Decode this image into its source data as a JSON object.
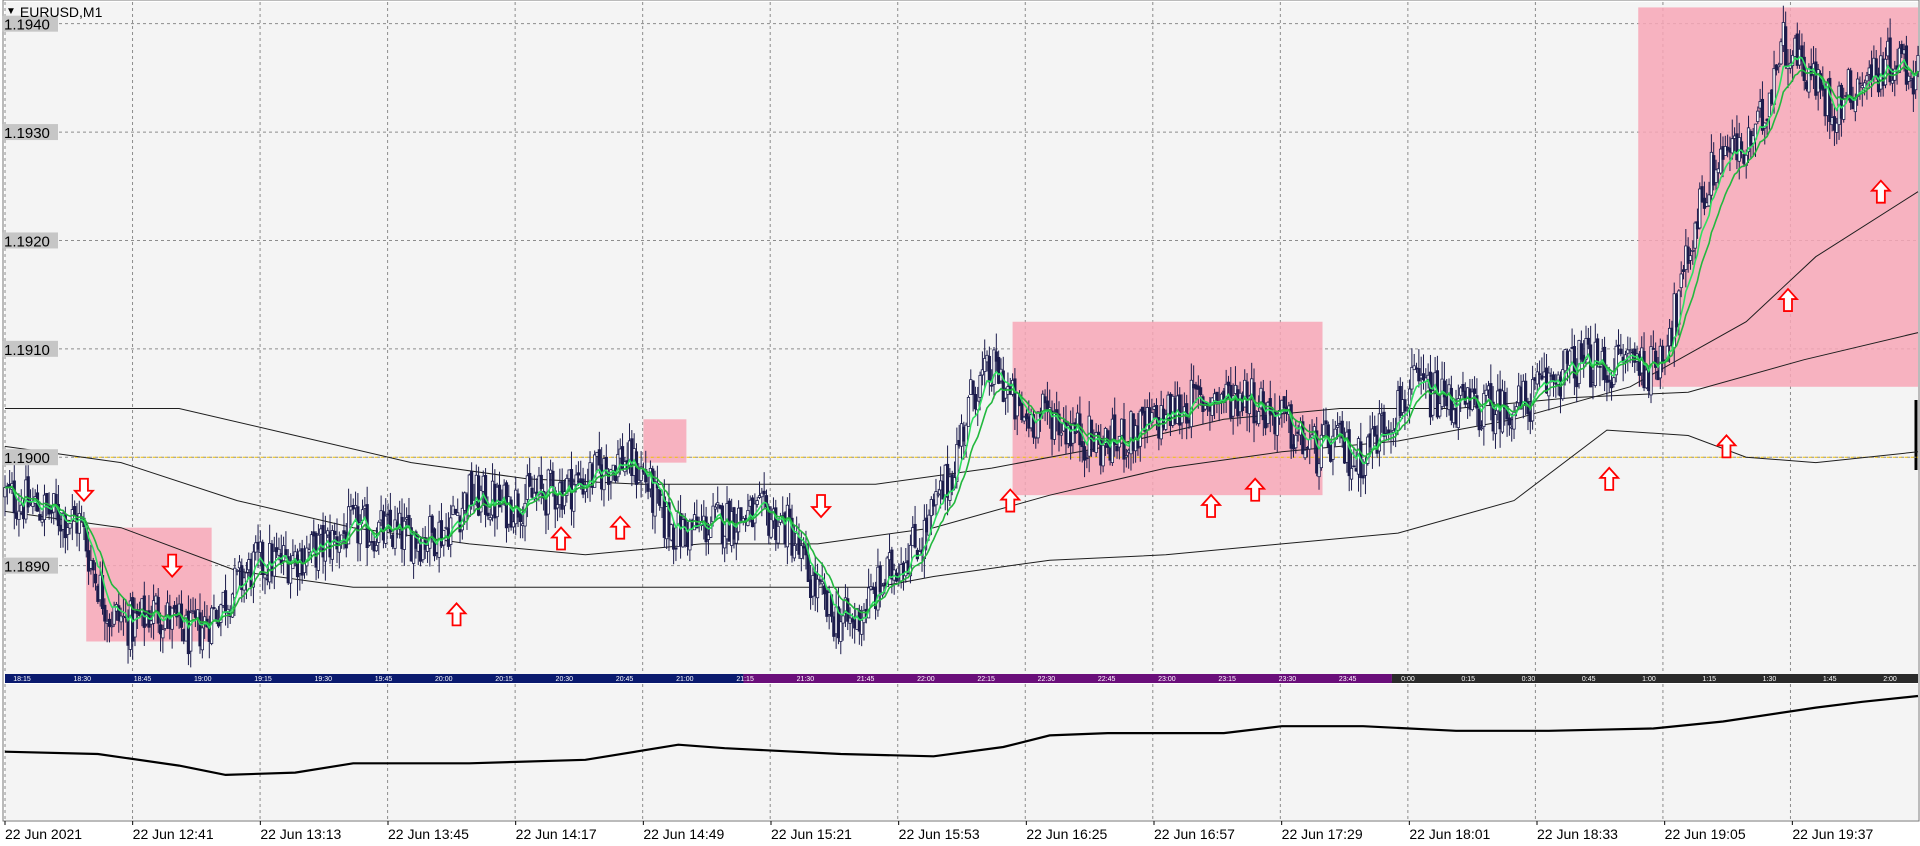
{
  "window": {
    "title": "EURUSD,M1",
    "dropdown_icon": "triangle-down-icon"
  },
  "colors": {
    "background": "#f4f4f4",
    "grid": "#8c8c8c",
    "candle": "#1c1c4c",
    "ma_fast": "#2fe060",
    "ma_slow": "#22b83e",
    "envelope": "#1e1e1e",
    "zone": "#f7a6b6",
    "arrow": "#ff0000",
    "bid_line": "#f0c000",
    "price_label_bg": "#c6c6c6"
  },
  "price_axis": {
    "labels": [
      "1.1940",
      "1.1930",
      "1.1920",
      "1.1910",
      "1.1900",
      "1.1890"
    ]
  },
  "session_bar": {
    "ticks": [
      "18:15",
      "18:30",
      "18:45",
      "19:00",
      "19:15",
      "19:30",
      "19:45",
      "20:00",
      "20:15",
      "20:30",
      "20:45",
      "21:00",
      "21:15",
      "21:30",
      "21:45",
      "22:00",
      "22:15",
      "22:30",
      "22:45",
      "23:00",
      "23:15",
      "23:30",
      "23:45",
      "0:00",
      "0:15",
      "0:30",
      "0:45",
      "1:00",
      "1:15",
      "1:30",
      "1:45",
      "2:00"
    ]
  },
  "time_axis": {
    "labels": [
      "22 Jun 2021",
      "22 Jun 12:41",
      "22 Jun 13:13",
      "22 Jun 13:45",
      "22 Jun 14:17",
      "22 Jun 14:49",
      "22 Jun 15:21",
      "22 Jun 15:53",
      "22 Jun 16:25",
      "22 Jun 16:57",
      "22 Jun 17:29",
      "22 Jun 18:01",
      "22 Jun 18:33",
      "22 Jun 19:05",
      "22 Jun 19:37"
    ]
  },
  "chart_data": {
    "type": "candlestick",
    "symbol": "EURUSD",
    "timeframe": "M1",
    "ylim": [
      1.188,
      1.1942
    ],
    "bid_level": 1.19,
    "time_range": [
      "22 Jun 2021 12:09",
      "22 Jun 2021 20:10"
    ],
    "price_path": [
      [
        0,
        1.18965
      ],
      [
        25,
        1.18955
      ],
      [
        50,
        1.18945
      ],
      [
        65,
        1.1894
      ],
      [
        75,
        1.189
      ],
      [
        90,
        1.18855
      ],
      [
        110,
        1.18845
      ],
      [
        130,
        1.1886
      ],
      [
        160,
        1.18835
      ],
      [
        175,
        1.1885
      ],
      [
        190,
        1.1887
      ],
      [
        215,
        1.189
      ],
      [
        240,
        1.18905
      ],
      [
        270,
        1.18915
      ],
      [
        300,
        1.18935
      ],
      [
        330,
        1.1893
      ],
      [
        360,
        1.18925
      ],
      [
        380,
        1.18935
      ],
      [
        400,
        1.18965
      ],
      [
        430,
        1.18955
      ],
      [
        460,
        1.18965
      ],
      [
        490,
        1.18975
      ],
      [
        510,
        1.18985
      ],
      [
        530,
        1.19
      ],
      [
        550,
        1.18985
      ],
      [
        565,
        1.18945
      ],
      [
        580,
        1.1893
      ],
      [
        600,
        1.18935
      ],
      [
        630,
        1.18945
      ],
      [
        660,
        1.18945
      ],
      [
        675,
        1.18935
      ],
      [
        690,
        1.18895
      ],
      [
        710,
        1.18855
      ],
      [
        730,
        1.18845
      ],
      [
        750,
        1.18875
      ],
      [
        770,
        1.18905
      ],
      [
        790,
        1.18925
      ],
      [
        815,
        1.18985
      ],
      [
        835,
        1.19065
      ],
      [
        855,
        1.1908
      ],
      [
        875,
        1.19035
      ],
      [
        900,
        1.1904
      ],
      [
        920,
        1.19025
      ],
      [
        945,
        1.1901
      ],
      [
        970,
        1.1902
      ],
      [
        995,
        1.19035
      ],
      [
        1020,
        1.1905
      ],
      [
        1050,
        1.19055
      ],
      [
        1070,
        1.1906
      ],
      [
        1085,
        1.19045
      ],
      [
        1100,
        1.19035
      ],
      [
        1115,
        1.19015
      ],
      [
        1130,
        1.19005
      ],
      [
        1145,
        1.19015
      ],
      [
        1165,
        1.18995
      ],
      [
        1190,
        1.19035
      ],
      [
        1215,
        1.19065
      ],
      [
        1235,
        1.19055
      ],
      [
        1260,
        1.19045
      ],
      [
        1290,
        1.19045
      ],
      [
        1310,
        1.1905
      ],
      [
        1335,
        1.19075
      ],
      [
        1360,
        1.1909
      ],
      [
        1380,
        1.1908
      ],
      [
        1400,
        1.19095
      ],
      [
        1420,
        1.1908
      ],
      [
        1440,
        1.19135
      ],
      [
        1460,
        1.19235
      ],
      [
        1480,
        1.19285
      ],
      [
        1500,
        1.1928
      ],
      [
        1515,
        1.19315
      ],
      [
        1530,
        1.19385
      ],
      [
        1545,
        1.1937
      ],
      [
        1560,
        1.19345
      ],
      [
        1575,
        1.1932
      ],
      [
        1590,
        1.1934
      ],
      [
        1610,
        1.19355
      ],
      [
        1630,
        1.1937
      ],
      [
        1648,
        1.1935
      ]
    ],
    "envelope_lines": [
      {
        "name": "",
        "points": [
          [
            0,
            1.19045
          ],
          [
            150,
            1.19045
          ],
          [
            250,
            1.1902
          ],
          [
            350,
            1.18995
          ],
          [
            450,
            1.1898
          ],
          [
            550,
            1.18975
          ],
          [
            650,
            1.18975
          ],
          [
            750,
            1.18975
          ],
          [
            850,
            1.1899
          ],
          [
            950,
            1.1901
          ],
          [
            1050,
            1.19035
          ],
          [
            1150,
            1.19045
          ],
          [
            1250,
            1.19045
          ],
          [
            1350,
            1.19055
          ],
          [
            1450,
            1.1906
          ],
          [
            1550,
            1.1909
          ],
          [
            1648,
            1.19115
          ]
        ]
      },
      {
        "name": "",
        "points": [
          [
            0,
            1.1895
          ],
          [
            100,
            1.18935
          ],
          [
            200,
            1.18895
          ],
          [
            300,
            1.1888
          ],
          [
            450,
            1.1888
          ],
          [
            600,
            1.1888
          ],
          [
            750,
            1.1888
          ],
          [
            800,
            1.1889
          ],
          [
            900,
            1.18905
          ],
          [
            1000,
            1.1891
          ],
          [
            1100,
            1.1892
          ],
          [
            1200,
            1.1893
          ],
          [
            1300,
            1.1896
          ],
          [
            1380,
            1.19025
          ],
          [
            1450,
            1.1902
          ],
          [
            1500,
            1.19
          ],
          [
            1560,
            1.18995
          ],
          [
            1648,
            1.19005
          ]
        ]
      },
      {
        "name": "",
        "points": [
          [
            0,
            1.1901
          ],
          [
            100,
            1.18995
          ],
          [
            200,
            1.1896
          ],
          [
            300,
            1.18935
          ],
          [
            400,
            1.1892
          ],
          [
            500,
            1.1891
          ],
          [
            600,
            1.1892
          ],
          [
            700,
            1.1892
          ],
          [
            800,
            1.18935
          ],
          [
            900,
            1.18965
          ],
          [
            1000,
            1.1899
          ],
          [
            1100,
            1.19005
          ],
          [
            1200,
            1.19015
          ],
          [
            1300,
            1.19035
          ],
          [
            1400,
            1.19065
          ],
          [
            1500,
            1.19125
          ],
          [
            1560,
            1.19185
          ],
          [
            1648,
            1.19245
          ]
        ]
      }
    ],
    "zones": [
      {
        "x": [
          70,
          178
        ],
        "y": [
          1.1883,
          1.18935
        ]
      },
      {
        "x": [
          550,
          587
        ],
        "y": [
          1.18995,
          1.19035
        ]
      },
      {
        "x": [
          868,
          1135
        ],
        "y": [
          1.18965,
          1.19125
        ]
      },
      {
        "x": [
          1407,
          1648
        ],
        "y": [
          1.19065,
          1.19415
        ]
      }
    ],
    "arrows": [
      {
        "dir": "down",
        "x": 68,
        "y": 1.1897
      },
      {
        "dir": "down",
        "x": 144,
        "y": 1.189
      },
      {
        "dir": "up",
        "x": 389,
        "y": 1.18855
      },
      {
        "dir": "up",
        "x": 479,
        "y": 1.18925
      },
      {
        "dir": "up",
        "x": 530,
        "y": 1.18935
      },
      {
        "dir": "down",
        "x": 703,
        "y": 1.18955
      },
      {
        "dir": "up",
        "x": 866,
        "y": 1.1896
      },
      {
        "dir": "up",
        "x": 1039,
        "y": 1.18955
      },
      {
        "dir": "up",
        "x": 1077,
        "y": 1.1897
      },
      {
        "dir": "up",
        "x": 1382,
        "y": 1.1898
      },
      {
        "dir": "up",
        "x": 1483,
        "y": 1.1901
      },
      {
        "dir": "up",
        "x": 1536,
        "y": 1.19145
      },
      {
        "dir": "up",
        "x": 1616,
        "y": 1.19245
      }
    ],
    "oscillator": {
      "points": [
        [
          0,
          0.52
        ],
        [
          80,
          0.5
        ],
        [
          150,
          0.4
        ],
        [
          190,
          0.32
        ],
        [
          250,
          0.34
        ],
        [
          300,
          0.42
        ],
        [
          400,
          0.42
        ],
        [
          500,
          0.45
        ],
        [
          580,
          0.58
        ],
        [
          620,
          0.55
        ],
        [
          720,
          0.5
        ],
        [
          800,
          0.48
        ],
        [
          860,
          0.56
        ],
        [
          900,
          0.66
        ],
        [
          950,
          0.68
        ],
        [
          1050,
          0.68
        ],
        [
          1100,
          0.74
        ],
        [
          1170,
          0.74
        ],
        [
          1250,
          0.7
        ],
        [
          1330,
          0.7
        ],
        [
          1420,
          0.72
        ],
        [
          1480,
          0.78
        ],
        [
          1560,
          0.9
        ],
        [
          1600,
          0.95
        ],
        [
          1648,
          1.0
        ]
      ]
    }
  }
}
